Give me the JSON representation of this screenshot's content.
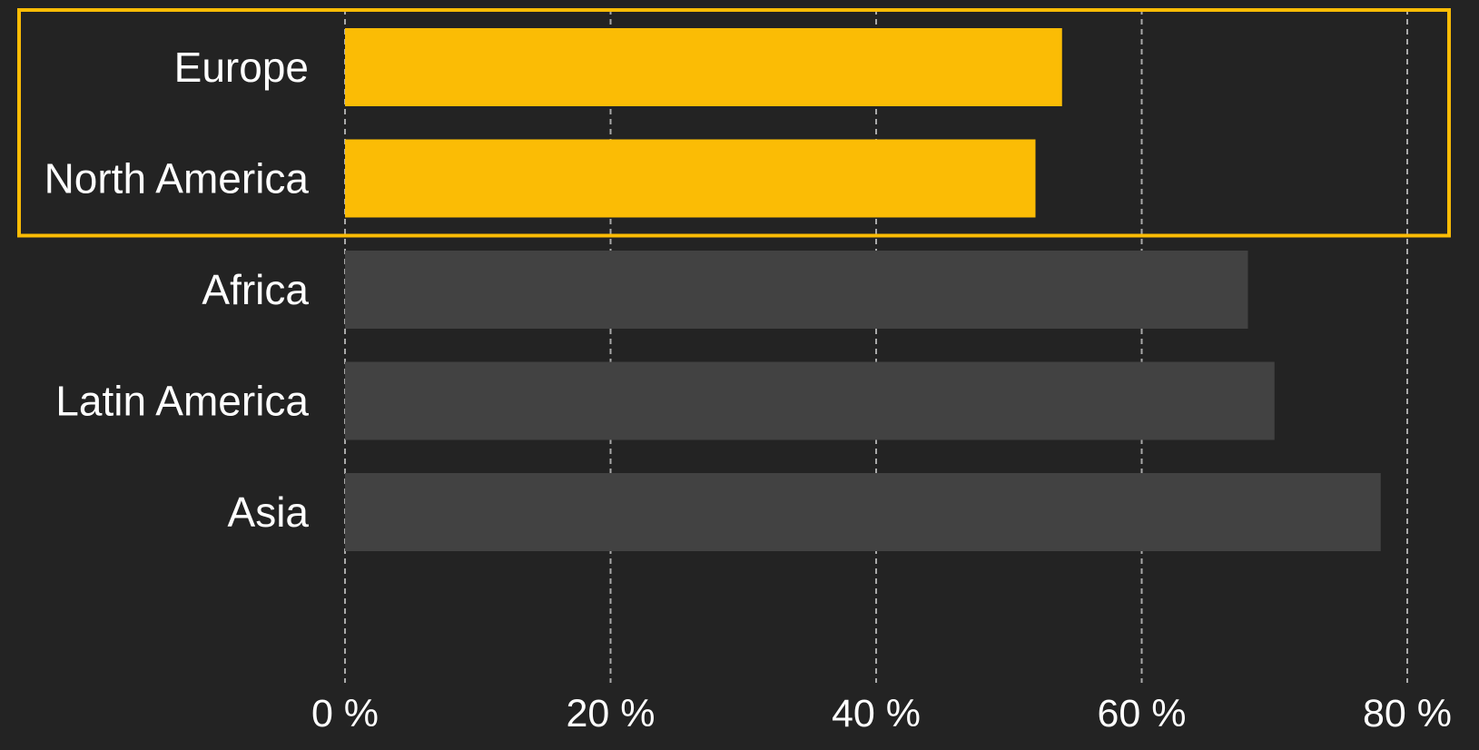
{
  "chart_data": {
    "type": "bar",
    "orientation": "horizontal",
    "categories": [
      "Europe",
      "North America",
      "Africa",
      "Latin America",
      "Asia"
    ],
    "values": [
      54,
      52,
      68,
      70,
      78
    ],
    "unit": "%",
    "xlim": [
      0,
      80
    ],
    "xticks": [
      0,
      20,
      40,
      60,
      80
    ],
    "xtick_labels": [
      "0 %",
      "20 %",
      "40 %",
      "60 %",
      "80 %"
    ],
    "grid": "vertical dashed",
    "highlighted_categories": [
      "Europe",
      "North America"
    ],
    "colors": {
      "background": "#232323",
      "highlight": "#FBBC05",
      "default_bar": "#424242",
      "grid": "#a9a9a9",
      "text": "#ffffff"
    }
  }
}
